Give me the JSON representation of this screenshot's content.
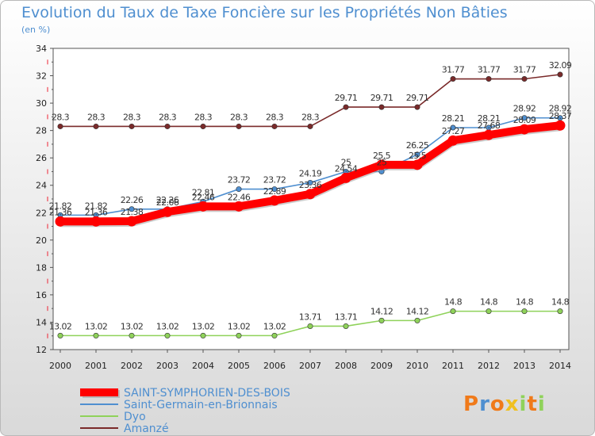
{
  "chart_data": {
    "type": "line",
    "title": "Evolution du Taux de Taxe Foncière sur les Propriétés Non Bâties",
    "subtitle": "(en %)",
    "xlabel": "",
    "ylabel": "",
    "categories": [
      "2000",
      "2001",
      "2002",
      "2003",
      "2004",
      "2005",
      "2006",
      "2007",
      "2008",
      "2009",
      "2010",
      "2011",
      "2012",
      "2013",
      "2014"
    ],
    "ylim": [
      12,
      34
    ],
    "yticks": [
      "12",
      "14",
      "16",
      "18",
      "20",
      "22",
      "24",
      "26",
      "28",
      "30",
      "32",
      "34"
    ],
    "grid": false,
    "legend_position": "bottom-left",
    "series": [
      {
        "name": "Amanzé",
        "color": "#7a2a2a",
        "values": [
          28.3,
          28.3,
          28.3,
          28.3,
          28.3,
          28.3,
          28.3,
          28.3,
          29.71,
          29.71,
          29.71,
          31.77,
          31.77,
          31.77,
          32.09
        ],
        "labels": [
          "28.3",
          "28.3",
          "28.3",
          "28.3",
          "28.3",
          "28.3",
          "28.3",
          "28.3",
          "29.71",
          "29.71",
          "29.71",
          "31.77",
          "31.77",
          "31.77",
          "32.09"
        ]
      },
      {
        "name": "Saint-Germain-en-Brionnais",
        "color": "#4f8fd0",
        "values": [
          21.82,
          21.82,
          22.26,
          22.26,
          22.81,
          23.72,
          23.72,
          24.19,
          25,
          25,
          26.25,
          28.21,
          28.21,
          28.92,
          28.92
        ],
        "labels": [
          "21.82",
          "21.82",
          "22.26",
          "22.26",
          "22.81",
          "23.72",
          "23.72",
          "24.19",
          "25",
          "25",
          "26.25",
          "28.21",
          "28.21",
          "28.92",
          "28.92"
        ]
      },
      {
        "name": "Dyo",
        "color": "#8fd25a",
        "values": [
          13.02,
          13.02,
          13.02,
          13.02,
          13.02,
          13.02,
          13.02,
          13.71,
          13.71,
          14.12,
          14.12,
          14.8,
          14.8,
          14.8,
          14.8
        ],
        "labels": [
          "13.02",
          "13.02",
          "13.02",
          "13.02",
          "13.02",
          "13.02",
          "13.02",
          "13.71",
          "13.71",
          "14.12",
          "14.12",
          "14.8",
          "14.8",
          "14.8",
          "14.8"
        ]
      },
      {
        "name": "SAINT-SYMPHORIEN-DES-BOIS",
        "color": "#ff0000",
        "values": [
          21.36,
          21.36,
          21.38,
          22.06,
          22.46,
          22.46,
          22.89,
          23.36,
          24.54,
          25.5,
          25.5,
          27.27,
          27.68,
          28.09,
          28.37
        ],
        "labels": [
          "21.36",
          "21.36",
          "21.38",
          "22.06",
          "22.46",
          "22.46",
          "22.89",
          "23.36",
          "24.54",
          "25.5",
          "25.5",
          "27.27",
          "27.68",
          "28.09",
          "28.37"
        ]
      }
    ],
    "legend_order": [
      "SAINT-SYMPHORIEN-DES-BOIS",
      "Saint-Germain-en-Brionnais",
      "Dyo",
      "Amanzé"
    ]
  },
  "logo": {
    "text": "Proxiti",
    "colors": [
      "#f07a1a",
      "#4f8fd0",
      "#f0c020",
      "#8fd25a"
    ]
  }
}
